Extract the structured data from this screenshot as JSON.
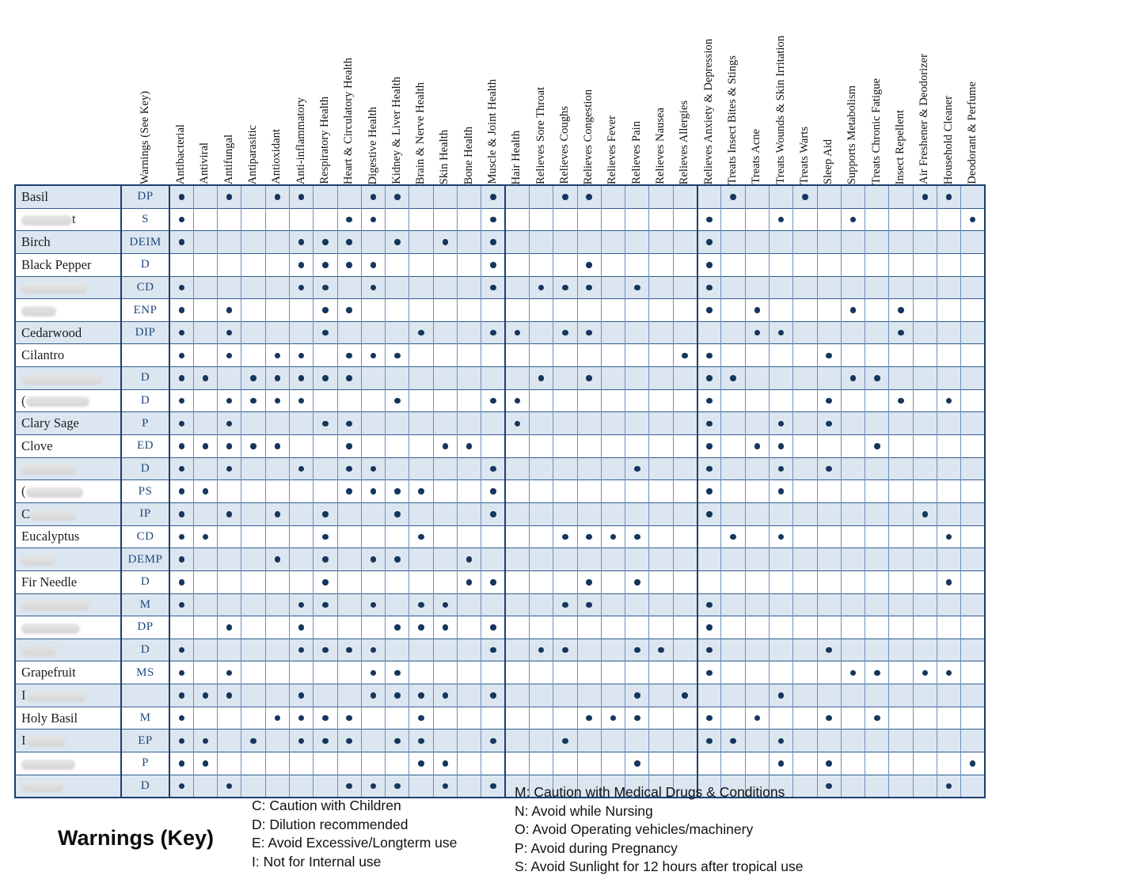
{
  "table": {
    "warnings_header": "Warnings  (See Key)",
    "columns": [
      "Antibacterial",
      "Antiviral",
      "Antifungal",
      "Antiparasitic",
      "Antioxidant",
      "Anti-inflammatory",
      "Respiratory Health",
      "Heart & Circulatory Health",
      "Digestive Health",
      "Kidney & Liver Health",
      "Brain & Nerve Health",
      "Skin Health",
      "Bone Health",
      "Muscle & Joint Health",
      "Hair Health",
      "Relieves Sore Throat",
      "Relieves Coughs",
      "Relieves Congestion",
      "Relieves Fever",
      "Relieves Pain",
      "Relieves Nausea",
      "Relieves Allergies",
      "Relieves Anxiety & Depression",
      "Treats Insect Bites & Stings",
      "Treats Acne",
      "Treats Wounds & Skin Irritation",
      "Treats Warts",
      "Sleep Aid",
      "Supports Metabolism",
      "Treats Chronic Fatigue",
      "Insect Repellent",
      "Air Freshener & Deodorizer",
      "Household Cleaner",
      "Deodorant & Perfume"
    ],
    "group_separators_after_columns": [
      14,
      22
    ],
    "rows": [
      {
        "name": "Basil",
        "redacted": false,
        "warning": "DP",
        "dots": [
          1,
          3,
          5,
          6,
          9,
          10,
          14,
          17,
          18,
          24,
          27,
          32,
          33
        ]
      },
      {
        "name": "",
        "redacted": true,
        "suffix": "t",
        "smudge_w": 64,
        "warning": "S",
        "dots": [
          1,
          8,
          9,
          14,
          23,
          26,
          29,
          34
        ]
      },
      {
        "name": "Birch",
        "redacted": false,
        "warning": "DEIM",
        "dots": [
          1,
          6,
          7,
          8,
          10,
          12,
          14,
          23
        ]
      },
      {
        "name": "Black Pepper",
        "redacted": false,
        "warning": "D",
        "dots": [
          6,
          7,
          8,
          9,
          14,
          18,
          23
        ]
      },
      {
        "name": "",
        "redacted": true,
        "smudge_w": 84,
        "warning": "CD",
        "dots": [
          1,
          6,
          7,
          9,
          14,
          16,
          17,
          18,
          20,
          23
        ]
      },
      {
        "name": "",
        "redacted": true,
        "smudge_w": 44,
        "warning": "ENP",
        "dots": [
          1,
          3,
          7,
          8,
          23,
          25,
          29,
          31
        ]
      },
      {
        "name": "Cedarwood",
        "redacted": false,
        "warning": "DIP",
        "dots": [
          1,
          3,
          7,
          11,
          14,
          15,
          17,
          18,
          25,
          26,
          31
        ]
      },
      {
        "name": "Cilantro",
        "redacted": false,
        "warning": "",
        "dots": [
          1,
          3,
          5,
          6,
          8,
          9,
          10,
          22,
          23,
          28
        ]
      },
      {
        "name": "",
        "redacted": true,
        "smudge_w": 104,
        "warning": "D",
        "dots": [
          1,
          2,
          4,
          5,
          6,
          7,
          8,
          16,
          18,
          23,
          24,
          29,
          30
        ]
      },
      {
        "name": "",
        "redacted": true,
        "prefix": "(",
        "smudge_w": 80,
        "warning": "D",
        "dots": [
          1,
          3,
          4,
          5,
          6,
          10,
          14,
          15,
          23,
          28,
          31,
          33
        ]
      },
      {
        "name": "Clary Sage",
        "redacted": false,
        "warning": "P",
        "dots": [
          1,
          3,
          7,
          8,
          15,
          23,
          26,
          28
        ]
      },
      {
        "name": "Clove",
        "redacted": false,
        "warning": "ED",
        "dots": [
          1,
          2,
          3,
          4,
          5,
          8,
          12,
          13,
          23,
          25,
          26,
          30
        ]
      },
      {
        "name": "",
        "redacted": true,
        "smudge_w": 70,
        "warning": "D",
        "dots": [
          1,
          3,
          6,
          8,
          9,
          14,
          20,
          23,
          26,
          28
        ]
      },
      {
        "name": "",
        "redacted": true,
        "prefix": "(",
        "smudge_w": 72,
        "warning": "PS",
        "dots": [
          1,
          2,
          8,
          9,
          10,
          11,
          14,
          23,
          26
        ]
      },
      {
        "name": "",
        "redacted": true,
        "prefix": "C",
        "smudge_w": 58,
        "warning": "IP",
        "dots": [
          1,
          3,
          5,
          7,
          10,
          14,
          23,
          32
        ]
      },
      {
        "name": "Eucalyptus",
        "redacted": false,
        "warning": "CD",
        "dots": [
          1,
          2,
          7,
          11,
          17,
          18,
          19,
          20,
          24,
          26,
          33
        ]
      },
      {
        "name": "",
        "redacted": true,
        "smudge_w": 42,
        "warning": "DEMP",
        "dots": [
          1,
          5,
          7,
          9,
          10,
          13
        ]
      },
      {
        "name": "Fir Needle",
        "redacted": false,
        "warning": "D",
        "dots": [
          1,
          7,
          13,
          14,
          18,
          20,
          33
        ]
      },
      {
        "name": "",
        "redacted": true,
        "smudge_w": 86,
        "warning": "M",
        "dots": [
          1,
          6,
          7,
          9,
          11,
          12,
          17,
          18,
          23
        ]
      },
      {
        "name": "",
        "redacted": true,
        "smudge_w": 74,
        "warning": "DP",
        "dots": [
          3,
          6,
          10,
          11,
          12,
          14,
          23
        ]
      },
      {
        "name": "",
        "redacted": true,
        "smudge_w": 44,
        "warning": "D",
        "dots": [
          1,
          6,
          7,
          8,
          9,
          14,
          16,
          17,
          20,
          21,
          23,
          28
        ]
      },
      {
        "name": "Grapefruit",
        "redacted": false,
        "warning": "MS",
        "dots": [
          1,
          3,
          9,
          10,
          23,
          29,
          30,
          32,
          33
        ]
      },
      {
        "name": "",
        "redacted": true,
        "prefix": "I",
        "smudge_w": 76,
        "warning": "",
        "dots": [
          1,
          2,
          3,
          6,
          9,
          10,
          11,
          12,
          14,
          20,
          22,
          26
        ]
      },
      {
        "name": "Holy Basil",
        "redacted": false,
        "warning": "M",
        "dots": [
          1,
          5,
          6,
          7,
          8,
          11,
          18,
          19,
          20,
          23,
          25,
          28,
          30
        ]
      },
      {
        "name": "",
        "redacted": true,
        "prefix": "I",
        "smudge_w": 50,
        "warning": "EP",
        "dots": [
          1,
          2,
          4,
          6,
          7,
          8,
          10,
          11,
          14,
          17,
          23,
          24,
          26
        ]
      },
      {
        "name": "",
        "redacted": true,
        "smudge_w": 68,
        "warning": "P",
        "dots": [
          1,
          2,
          11,
          12,
          20,
          26,
          28,
          34
        ]
      },
      {
        "name": "",
        "redacted": true,
        "smudge_w": 54,
        "warning": "D",
        "dots": [
          1,
          3,
          8,
          9,
          10,
          12,
          14,
          28,
          33
        ]
      }
    ]
  },
  "key": {
    "title": "Warnings (Key)",
    "left": [
      "C: Caution with Children",
      "D: Dilution recommended",
      "E: Avoid Excessive/Longterm use",
      "I: Not for Internal use"
    ],
    "right": [
      "M: Caution with Medical Drugs & Conditions",
      "N: Avoid while Nursing",
      "O: Avoid Operating vehicles/machinery",
      "P: Avoid during Pregnancy",
      "S: Avoid Sunlight for 12 hours after tropical use"
    ]
  },
  "colors": {
    "dot": "#17365d",
    "row_shade": "#dce6f1",
    "grid_line": "#6b90bf",
    "frame_line": "#1c3f6e",
    "warning_text": "#1f497d"
  }
}
